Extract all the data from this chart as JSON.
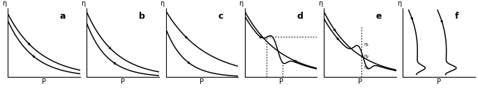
{
  "figsize": [
    6.85,
    1.27
  ],
  "dpi": 100,
  "panels": [
    "a",
    "b",
    "c",
    "d",
    "e",
    "f"
  ],
  "background": "white",
  "linecolor": "black",
  "linewidth": 1.1
}
